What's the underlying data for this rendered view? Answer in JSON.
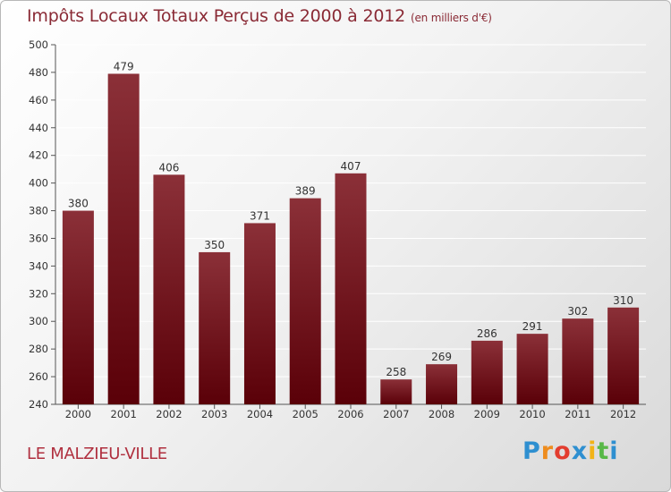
{
  "title": "Impôts Locaux Totaux Perçus de 2000 à 2012",
  "subtitle": "(en milliers d'€)",
  "place": "LE MALZIEU-VILLE",
  "logo": {
    "text": "Proxiti",
    "letters": [
      "P",
      "r",
      "o",
      "x",
      "i",
      "t",
      "i"
    ]
  },
  "colors": {
    "bar_top": "#8b3038",
    "bar_bottom": "#5a0008",
    "title": "#8a2a35",
    "place": "#b0303f",
    "grid": "#ffffff",
    "logo": [
      "#2e8fd0",
      "#ee8c1e",
      "#e33d2f",
      "#2e8fd0",
      "#f2b318",
      "#58b848",
      "#2e8fd0"
    ]
  },
  "chart_data": {
    "type": "bar",
    "title": "Impôts Locaux Totaux Perçus de 2000 à 2012",
    "ylabel": "en milliers d'€",
    "xlabel": "",
    "categories": [
      "2000",
      "2001",
      "2002",
      "2003",
      "2004",
      "2005",
      "2006",
      "2007",
      "2008",
      "2009",
      "2010",
      "2011",
      "2012"
    ],
    "values": [
      380,
      479,
      406,
      350,
      371,
      389,
      407,
      258,
      269,
      286,
      291,
      302,
      310
    ],
    "ylim": [
      240,
      500
    ],
    "yticks": [
      240,
      260,
      280,
      300,
      320,
      340,
      360,
      380,
      400,
      420,
      440,
      460,
      480,
      500
    ],
    "grid": true
  }
}
